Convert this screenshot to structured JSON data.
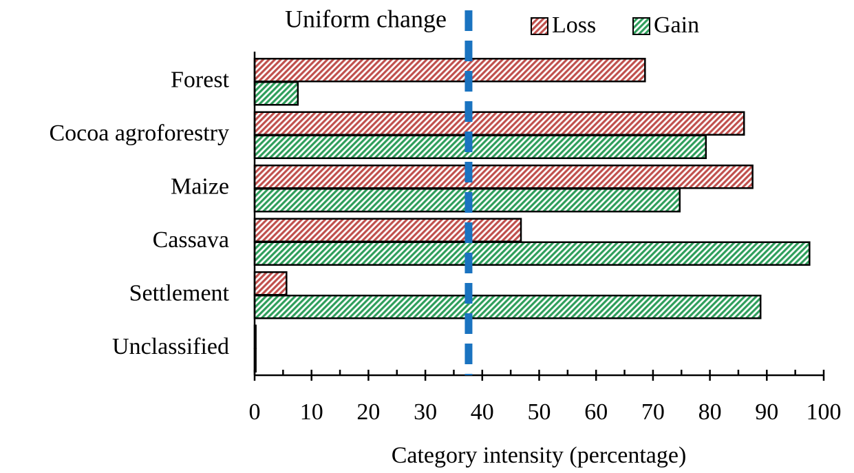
{
  "chart_data": {
    "type": "barh",
    "categories": [
      "Forest",
      "Cocoa agroforestry",
      "Maize",
      "Cassava",
      "Settlement",
      "Unclassified"
    ],
    "series": [
      {
        "name": "Loss",
        "color": "#c0504d",
        "values": [
          68.6,
          86.0,
          87.5,
          46.8,
          5.6,
          0.2
        ]
      },
      {
        "name": "Gain",
        "color": "#2e9e5b",
        "values": [
          7.6,
          79.3,
          74.7,
          97.5,
          88.9,
          0.2
        ]
      }
    ],
    "x_label": "Category intensity (percentage)",
    "xlim": [
      0,
      100
    ],
    "xticks": [
      0,
      10,
      20,
      30,
      40,
      50,
      60,
      70,
      80,
      90,
      100
    ],
    "xminorticks": [
      5,
      15,
      25,
      35,
      45,
      55,
      65,
      75,
      85,
      95
    ],
    "reference_line": {
      "value": 37.6,
      "label": "Uniform change",
      "color": "#1a73c0"
    },
    "legend": "top"
  }
}
